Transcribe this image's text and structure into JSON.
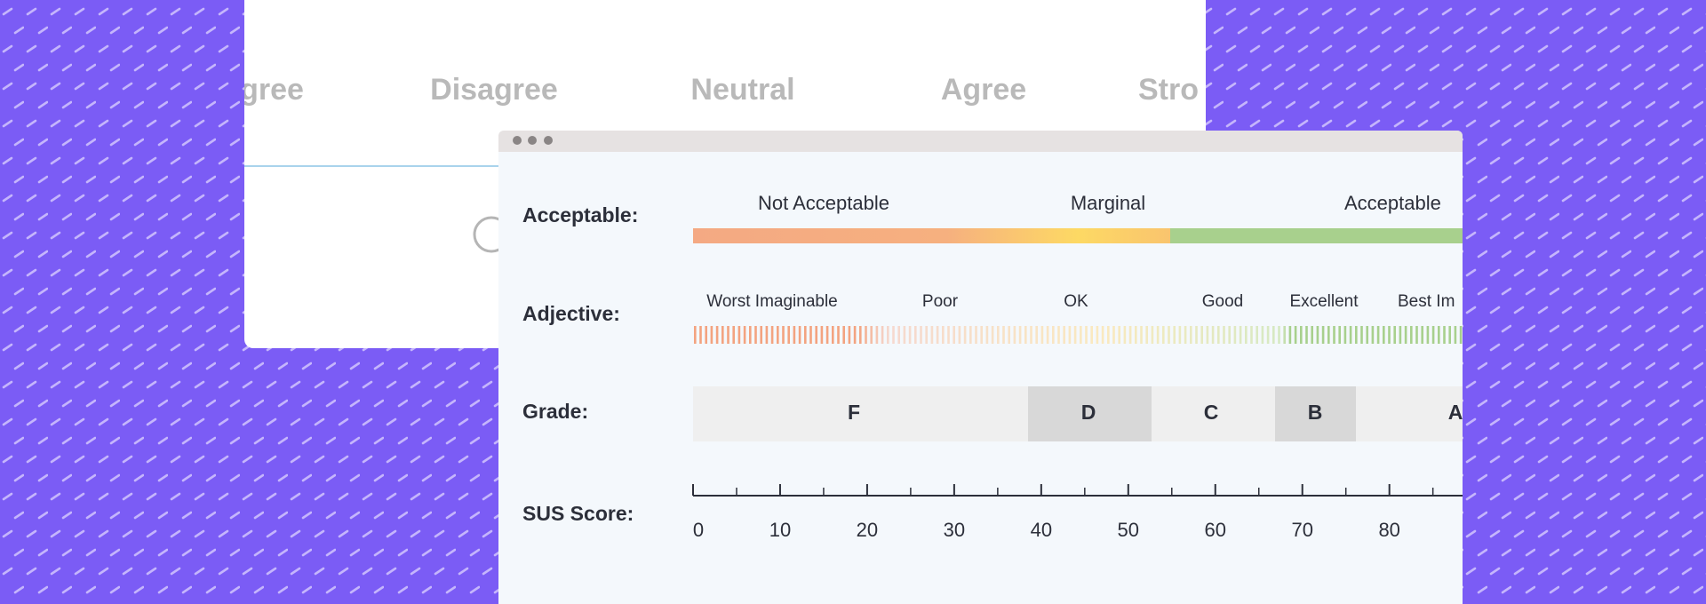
{
  "survey_card": {
    "scale_labels": [
      "gree",
      "Disagree",
      "Neutral",
      "Agree",
      "Stro"
    ]
  },
  "sus_window": {
    "acceptable": {
      "label": "Acceptable:",
      "ranges": [
        "Not Acceptable",
        "Marginal",
        "Acceptable"
      ]
    },
    "adjective": {
      "label": "Adjective:",
      "terms": [
        "Worst Imaginable",
        "Poor",
        "OK",
        "Good",
        "Excellent",
        "Best Im"
      ]
    },
    "grade": {
      "label": "Grade:",
      "grades": [
        "F",
        "D",
        "C",
        "B",
        "A"
      ]
    },
    "sus_score": {
      "label": "SUS Score:",
      "ticks": [
        0,
        10,
        20,
        30,
        40,
        50,
        60,
        70,
        80
      ]
    }
  }
}
